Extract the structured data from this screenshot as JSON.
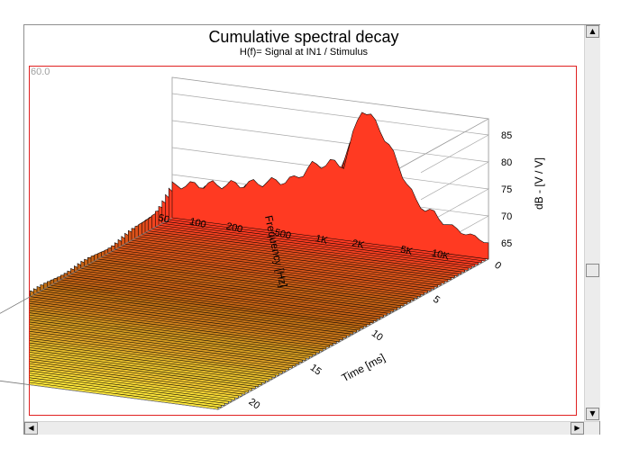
{
  "chart_data": {
    "type": "waterfall-3d",
    "title": "Cumulative spectral decay",
    "subtitle": "H(f)= Signal at IN1 / Stimulus",
    "corner_label": "60.0",
    "frequency_axis": {
      "label": "Frequency [Hz]",
      "scale": "log",
      "range_hz": [
        50,
        20000
      ],
      "ticks": [
        {
          "label": "50",
          "value": 50
        },
        {
          "label": "100",
          "value": 100
        },
        {
          "label": "200",
          "value": 200
        },
        {
          "label": "500",
          "value": 500
        },
        {
          "label": "1K",
          "value": 1000
        },
        {
          "label": "2K",
          "value": 2000
        },
        {
          "label": "5K",
          "value": 5000
        },
        {
          "label": "10K",
          "value": 10000
        }
      ]
    },
    "time_axis": {
      "label": "Time [ms]",
      "range": [
        0,
        22
      ],
      "ticks": [
        {
          "label": "0",
          "value": 0
        },
        {
          "label": "5",
          "value": 5
        },
        {
          "label": "10",
          "value": 10
        },
        {
          "label": "15",
          "value": 15
        },
        {
          "label": "20",
          "value": 20
        }
      ]
    },
    "level_axis": {
      "label": "dB - [V / V]",
      "range": [
        62,
        88
      ],
      "ticks": [
        {
          "label": "65",
          "value": 65
        },
        {
          "label": "70",
          "value": 70
        },
        {
          "label": "75",
          "value": 75
        },
        {
          "label": "80",
          "value": 80
        },
        {
          "label": "85",
          "value": 85
        }
      ]
    },
    "initial_response_db": [
      {
        "freq_hz": 50,
        "db": 68
      },
      {
        "freq_hz": 100,
        "db": 69
      },
      {
        "freq_hz": 200,
        "db": 70
      },
      {
        "freq_hz": 500,
        "db": 72
      },
      {
        "freq_hz": 700,
        "db": 75
      },
      {
        "freq_hz": 1000,
        "db": 76
      },
      {
        "freq_hz": 1300,
        "db": 76
      },
      {
        "freq_hz": 1800,
        "db": 87
      },
      {
        "freq_hz": 2500,
        "db": 84
      },
      {
        "freq_hz": 3500,
        "db": 78
      },
      {
        "freq_hz": 5000,
        "db": 71
      },
      {
        "freq_hz": 10000,
        "db": 67
      },
      {
        "freq_hz": 20000,
        "db": 65
      }
    ],
    "colors": {
      "peak": "#ff3a22",
      "mid": "#b86a12",
      "floor": "#ffe83a",
      "frame": "#e02020"
    }
  }
}
